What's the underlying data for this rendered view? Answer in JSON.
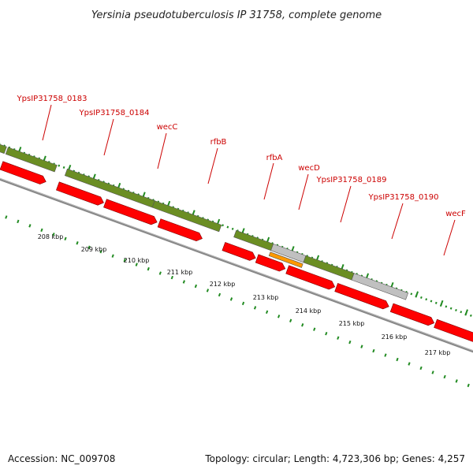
{
  "title": "Yersinia pseudotuberculosis IP 31758, complete genome",
  "footer": {
    "accession": "Accession: NC_009708",
    "summary": "Topology: circular; Length: 4,723,306 bp; Genes: 4,257"
  },
  "colors": {
    "gene_label": "#cc0000",
    "forward_feature": "#6b8e23",
    "cds": "#ff0000",
    "pseudo": "#c0c0c0",
    "orange_feature": "#ff9900",
    "tick": "#228b22",
    "backbone": "#888888"
  },
  "gene_labels": [
    {
      "text": "YpsIP31758_0183"
    },
    {
      "text": "YpsIP31758_0184"
    },
    {
      "text": "wecC"
    },
    {
      "text": "rfbB"
    },
    {
      "text": "rfbA"
    },
    {
      "text": "wecD"
    },
    {
      "text": "YpsIP31758_0189"
    },
    {
      "text": "YpsIP31758_0190"
    },
    {
      "text": "wecF"
    }
  ],
  "kbp_labels": [
    "208 kbp",
    "209 kbp",
    "210 kbp",
    "211 kbp",
    "212 kbp",
    "213 kbp",
    "214 kbp",
    "215 kbp",
    "216 kbp",
    "217 kbp"
  ]
}
